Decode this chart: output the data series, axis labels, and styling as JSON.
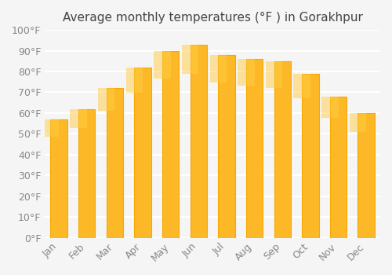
{
  "title": "Average monthly temperatures (°F ) in Gorakhpur",
  "months": [
    "Jan",
    "Feb",
    "Mar",
    "Apr",
    "May",
    "Jun",
    "Jul",
    "Aug",
    "Sep",
    "Oct",
    "Nov",
    "Dec"
  ],
  "values": [
    57,
    62,
    72,
    82,
    90,
    93,
    88,
    86,
    85,
    79,
    68,
    60
  ],
  "bar_color_face": "#FDB827",
  "bar_color_edge": "#F5A800",
  "ylim": [
    0,
    100
  ],
  "yticks": [
    0,
    10,
    20,
    30,
    40,
    50,
    60,
    70,
    80,
    90,
    100
  ],
  "ytick_labels": [
    "0°F",
    "10°F",
    "20°F",
    "30°F",
    "40°F",
    "50°F",
    "60°F",
    "70°F",
    "80°F",
    "90°F",
    "100°F"
  ],
  "background_color": "#f5f5f5",
  "grid_color": "#ffffff",
  "title_fontsize": 11,
  "tick_fontsize": 9,
  "bar_width": 0.6
}
